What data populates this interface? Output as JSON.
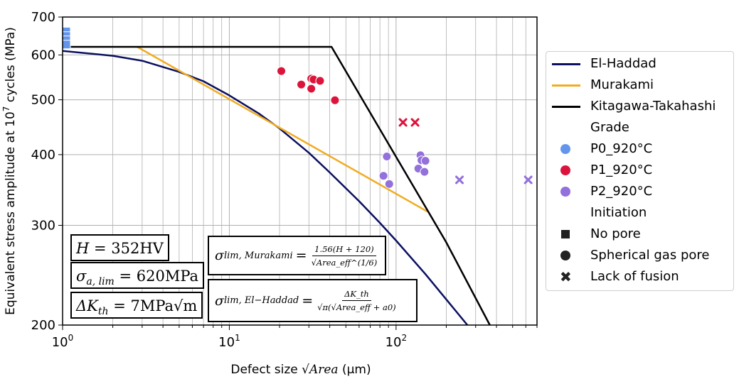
{
  "chart_data": {
    "type": "scatter",
    "xlabel": "Defect size √Area (µm)",
    "ylabel": "Equivalent stress amplitude at 10^7 cycles (MPa)",
    "x_scale": "log",
    "y_scale": "log",
    "xlim": [
      1,
      700
    ],
    "ylim": [
      200,
      700
    ],
    "x_ticks": [
      {
        "value": 1,
        "label": "10",
        "exp": "0"
      },
      {
        "value": 10,
        "label": "10",
        "exp": "1"
      },
      {
        "value": 100,
        "label": "10",
        "exp": "2"
      }
    ],
    "y_ticks": [
      {
        "value": 200,
        "label": "200"
      },
      {
        "value": 300,
        "label": "300"
      },
      {
        "value": 400,
        "label": "400"
      },
      {
        "value": 500,
        "label": "500"
      },
      {
        "value": 600,
        "label": "600"
      },
      {
        "value": 700,
        "label": "700"
      }
    ],
    "grid": true,
    "colors": {
      "el_haddad": "#0b1060",
      "murakami": "#f0ac22",
      "kitagawa": "#000000",
      "P0_920C": "#6495ed",
      "P1_920C": "#dc143c",
      "P2_920C": "#9370db"
    },
    "lines": [
      {
        "name": "El-Haddad",
        "color_key": "el_haddad",
        "points": [
          [
            1,
            610
          ],
          [
            2,
            598
          ],
          [
            3,
            586
          ],
          [
            5,
            560
          ],
          [
            7,
            539
          ],
          [
            10,
            509
          ],
          [
            15,
            473
          ],
          [
            20,
            445
          ],
          [
            30,
            403
          ],
          [
            40,
            372
          ],
          [
            60,
            331
          ],
          [
            80,
            303
          ],
          [
            100,
            282
          ],
          [
            150,
            246
          ],
          [
            200,
            222
          ],
          [
            300,
            192
          ]
        ]
      },
      {
        "name": "Murakami",
        "color_key": "murakami",
        "points": [
          [
            2.8,
            620
          ],
          [
            155,
            317
          ]
        ]
      },
      {
        "name": "Kitagawa-Takahashi",
        "color_key": "kitagawa",
        "points": [
          [
            1,
            620
          ],
          [
            41,
            620
          ],
          [
            200,
            280
          ],
          [
            365,
            200
          ]
        ]
      }
    ],
    "points": [
      {
        "x": 1.05,
        "y": 660,
        "grade": "P0_920C",
        "initiation": "No pore"
      },
      {
        "x": 1.05,
        "y": 648,
        "grade": "P0_920C",
        "initiation": "No pore"
      },
      {
        "x": 1.05,
        "y": 637,
        "grade": "P0_920C",
        "initiation": "No pore"
      },
      {
        "x": 1.05,
        "y": 626,
        "grade": "P0_920C",
        "initiation": "No pore"
      },
      {
        "x": 20.5,
        "y": 562,
        "grade": "P1_920C",
        "initiation": "Spherical gas pore"
      },
      {
        "x": 27,
        "y": 532,
        "grade": "P1_920C",
        "initiation": "Spherical gas pore"
      },
      {
        "x": 31,
        "y": 545,
        "grade": "P1_920C",
        "initiation": "Spherical gas pore"
      },
      {
        "x": 32,
        "y": 543,
        "grade": "P1_920C",
        "initiation": "Spherical gas pore"
      },
      {
        "x": 31,
        "y": 523,
        "grade": "P1_920C",
        "initiation": "Spherical gas pore"
      },
      {
        "x": 35,
        "y": 540,
        "grade": "P1_920C",
        "initiation": "Spherical gas pore"
      },
      {
        "x": 43,
        "y": 499,
        "grade": "P1_920C",
        "initiation": "Spherical gas pore"
      },
      {
        "x": 110,
        "y": 456,
        "grade": "P1_920C",
        "initiation": "Lack of fusion"
      },
      {
        "x": 130,
        "y": 456,
        "grade": "P1_920C",
        "initiation": "Lack of fusion"
      },
      {
        "x": 88,
        "y": 397,
        "grade": "P2_920C",
        "initiation": "Spherical gas pore"
      },
      {
        "x": 84,
        "y": 367,
        "grade": "P2_920C",
        "initiation": "Spherical gas pore"
      },
      {
        "x": 91,
        "y": 355,
        "grade": "P2_920C",
        "initiation": "Spherical gas pore"
      },
      {
        "x": 140,
        "y": 399,
        "grade": "P2_920C",
        "initiation": "Spherical gas pore"
      },
      {
        "x": 142,
        "y": 391,
        "grade": "P2_920C",
        "initiation": "Spherical gas pore"
      },
      {
        "x": 150,
        "y": 390,
        "grade": "P2_920C",
        "initiation": "Spherical gas pore"
      },
      {
        "x": 136,
        "y": 378,
        "grade": "P2_920C",
        "initiation": "Spherical gas pore"
      },
      {
        "x": 148,
        "y": 373,
        "grade": "P2_920C",
        "initiation": "Spherical gas pore"
      },
      {
        "x": 240,
        "y": 361,
        "grade": "P2_920C",
        "initiation": "Lack of fusion"
      },
      {
        "x": 620,
        "y": 361,
        "grade": "P2_920C",
        "initiation": "Lack of fusion"
      }
    ],
    "annotations": {
      "hardness": {
        "symbol": "H",
        "text": " = 352HV"
      },
      "sigma_lim": {
        "symbol": "σ",
        "sub": "a, lim",
        "text": " = 620MPa"
      },
      "delta_k": {
        "symbol": "ΔK",
        "sub": "th",
        "text": " = 7MPa√m"
      },
      "murakami_formula": {
        "lhs_symbol": "σ",
        "lhs_sub": "lim, Murakami",
        "numerator": "1.56(H + 120)",
        "denominator": "√Area_eff^(1/6)"
      },
      "elhaddad_formula": {
        "lhs_symbol": "σ",
        "lhs_sub": "lim, El−Haddad",
        "numerator": "ΔK_th",
        "denominator": "√π(√Area_eff + a0)"
      }
    },
    "legend": {
      "placement": "right",
      "entries": [
        {
          "label": "El-Haddad",
          "kind": "line",
          "color_key": "el_haddad"
        },
        {
          "label": "Murakami",
          "kind": "line",
          "color_key": "murakami"
        },
        {
          "label": "Kitagawa-Takahashi",
          "kind": "line",
          "color_key": "kitagawa"
        },
        {
          "label": "Grade",
          "kind": "header"
        },
        {
          "label": "P0_920°C",
          "kind": "dot",
          "color_key": "P0_920C"
        },
        {
          "label": "P1_920°C",
          "kind": "dot",
          "color_key": "P1_920C"
        },
        {
          "label": "P2_920°C",
          "kind": "dot",
          "color_key": "P2_920C"
        },
        {
          "label": "Initiation",
          "kind": "header"
        },
        {
          "label": "No pore",
          "kind": "square"
        },
        {
          "label": "Spherical gas pore",
          "kind": "circle"
        },
        {
          "label": "Lack of fusion",
          "kind": "cross"
        }
      ]
    }
  }
}
